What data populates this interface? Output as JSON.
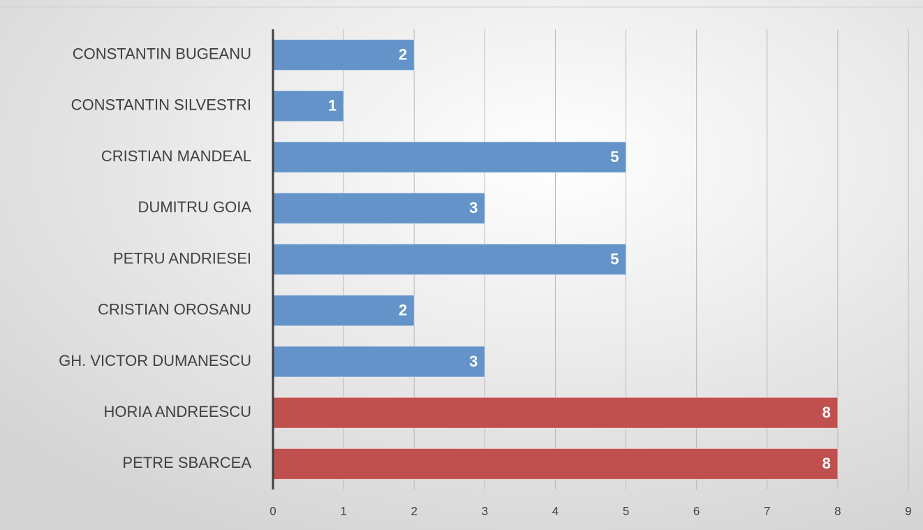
{
  "chart_data": {
    "type": "bar",
    "orientation": "horizontal",
    "categories": [
      "CONSTANTIN BUGEANU",
      "CONSTANTIN SILVESTRI",
      "CRISTIAN MANDEAL",
      "DUMITRU GOIA",
      "PETRU ANDRIESEI ",
      "CRISTIAN OROSANU",
      "GH. VICTOR DUMANESCU",
      "HORIA ANDREESCU",
      "PETRE SBARCEA"
    ],
    "values": [
      2,
      1,
      5,
      3,
      5,
      2,
      3,
      8,
      8
    ],
    "colors": [
      "#6393c8",
      "#6393c8",
      "#6393c8",
      "#6393c8",
      "#6393c8",
      "#6393c8",
      "#6393c8",
      "#c0504d",
      "#c0504d"
    ],
    "xlim": [
      0,
      9
    ],
    "xticks": [
      0,
      1,
      2,
      3,
      4,
      5,
      6,
      7,
      8,
      9
    ],
    "grid": true,
    "data_labels": true
  }
}
